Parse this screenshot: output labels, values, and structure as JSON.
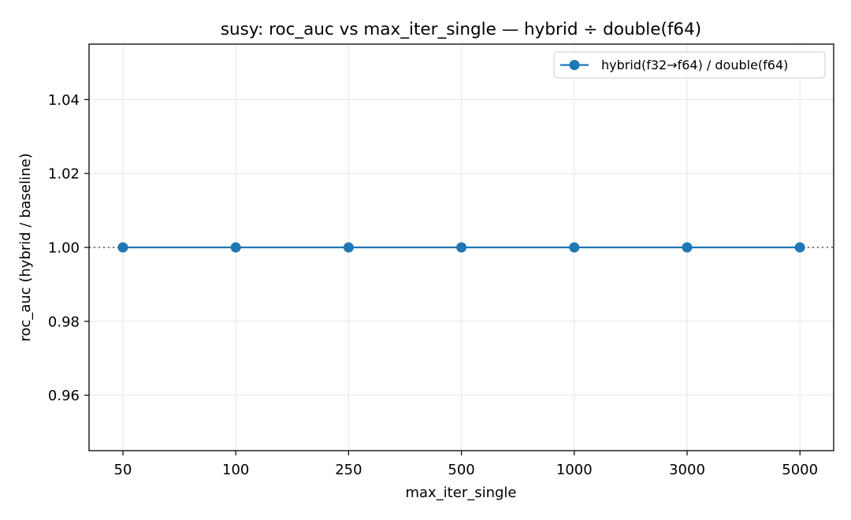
{
  "chart_data": {
    "type": "line",
    "title": "susy: roc_auc vs max_iter_single — hybrid ÷ double(f64)",
    "xlabel": "max_iter_single",
    "ylabel": "roc_auc (hybrid / baseline)",
    "categories": [
      "50",
      "100",
      "250",
      "500",
      "1000",
      "3000",
      "5000"
    ],
    "series": [
      {
        "name": "hybrid(f32→f64) / double(f64)",
        "values": [
          1.0,
          1.0,
          1.0,
          1.0,
          1.0,
          1.0,
          1.0
        ],
        "color": "#1f77b4",
        "marker": "circle"
      }
    ],
    "ylim": [
      0.945,
      1.055
    ],
    "yticks": [
      0.96,
      0.98,
      1.0,
      1.02,
      1.04
    ],
    "ytick_labels": [
      "0.96",
      "0.98",
      "1.00",
      "1.02",
      "1.04"
    ],
    "reference_line": {
      "y": 1.0,
      "style": "dotted",
      "color": "#808080"
    },
    "grid": true,
    "legend_position": "top-right"
  }
}
